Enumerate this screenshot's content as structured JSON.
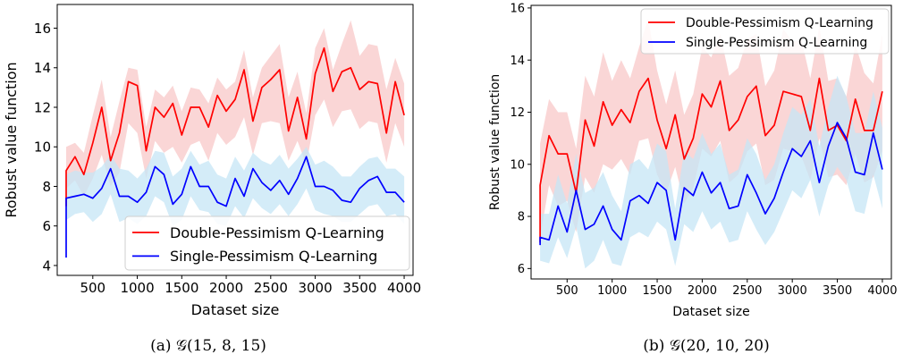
{
  "chart_data": [
    {
      "type": "line",
      "caption": "(a) 𝒢(15, 8, 15)",
      "xlabel": "Dataset size",
      "ylabel": "Robust value function",
      "xlim": [
        100,
        4100
      ],
      "ylim": [
        3.5,
        17.2
      ],
      "xticks": [
        500,
        1000,
        1500,
        2000,
        2500,
        3000,
        3500,
        4000
      ],
      "yticks": [
        4,
        6,
        8,
        10,
        12,
        14,
        16
      ],
      "legend": "lower-right",
      "x": [
        200,
        300,
        400,
        500,
        600,
        700,
        800,
        900,
        1000,
        1100,
        1200,
        1300,
        1400,
        1500,
        1600,
        1700,
        1800,
        1900,
        2000,
        2100,
        2200,
        2300,
        2400,
        2500,
        2600,
        2700,
        2800,
        2900,
        3000,
        3100,
        3200,
        3300,
        3400,
        3500,
        3600,
        3700,
        3800,
        3900,
        4000
      ],
      "series": [
        {
          "name": "Double-Pessimism Q-Learning",
          "color": "#ff0000",
          "band_color": "#f8c8c8",
          "values": [
            8.8,
            9.5,
            8.6,
            10.2,
            12.0,
            9.3,
            10.7,
            13.3,
            13.1,
            9.8,
            12.0,
            11.5,
            12.2,
            10.6,
            12.0,
            12.0,
            11.0,
            12.6,
            11.8,
            12.4,
            13.9,
            11.3,
            13.0,
            13.4,
            13.9,
            10.8,
            12.5,
            10.4,
            13.7,
            15.0,
            12.8,
            13.8,
            14.0,
            12.9,
            13.3,
            13.2,
            10.7,
            13.3,
            11.6
          ],
          "band_low": [
            7.9,
            8.3,
            7.5,
            8.4,
            9.6,
            8.0,
            8.7,
            11.2,
            10.7,
            8.4,
            10.3,
            9.7,
            10.0,
            9.2,
            10.1,
            10.3,
            9.3,
            10.7,
            10.1,
            10.5,
            11.5,
            9.6,
            11.2,
            11.3,
            11.2,
            9.3,
            10.3,
            9.1,
            11.6,
            12.4,
            11.0,
            11.8,
            11.9,
            10.9,
            11.3,
            11.2,
            9.2,
            11.2,
            10.0
          ],
          "band_high": [
            10.0,
            10.2,
            9.7,
            11.6,
            13.4,
            10.5,
            12.3,
            14.0,
            13.9,
            11.0,
            12.9,
            12.5,
            13.1,
            11.8,
            13.0,
            12.9,
            12.2,
            13.5,
            12.9,
            13.3,
            14.9,
            12.5,
            14.0,
            14.6,
            15.2,
            12.5,
            13.8,
            11.7,
            15.0,
            16.0,
            13.9,
            15.2,
            16.4,
            14.6,
            15.2,
            15.1,
            12.9,
            14.5,
            13.2
          ]
        },
        {
          "name": "Single-Pessimism Q-Learning",
          "color": "#0000ff",
          "band_color": "#c6e6f6",
          "values": [
            7.4,
            7.5,
            7.6,
            7.4,
            7.9,
            8.9,
            7.5,
            7.5,
            7.2,
            7.7,
            9.0,
            8.6,
            7.1,
            7.6,
            9.0,
            8.0,
            8.0,
            7.2,
            7.0,
            8.4,
            7.5,
            8.9,
            8.2,
            7.8,
            8.3,
            7.6,
            8.4,
            9.5,
            8.0,
            8.0,
            7.8,
            7.3,
            7.2,
            7.9,
            8.3,
            8.5,
            7.7,
            7.7,
            7.2
          ],
          "band_low": [
            6.3,
            6.6,
            6.7,
            6.2,
            6.6,
            7.6,
            6.2,
            6.4,
            6.1,
            6.5,
            7.5,
            7.2,
            6.0,
            6.3,
            7.5,
            6.8,
            6.7,
            6.1,
            6.0,
            7.0,
            6.4,
            7.4,
            6.9,
            6.6,
            7.1,
            6.5,
            7.1,
            7.9,
            6.8,
            6.6,
            6.5,
            6.2,
            6.2,
            6.6,
            7.0,
            7.1,
            6.5,
            6.6,
            6.1
          ],
          "band_high": [
            8.6,
            8.8,
            8.7,
            8.7,
            9.0,
            9.6,
            8.9,
            8.8,
            8.4,
            8.9,
            9.8,
            9.7,
            8.5,
            8.9,
            9.8,
            9.1,
            9.3,
            8.6,
            8.4,
            9.5,
            8.8,
            9.7,
            9.3,
            9.1,
            9.6,
            8.9,
            9.4,
            10.0,
            9.1,
            9.3,
            9.0,
            8.5,
            8.5,
            9.0,
            9.4,
            9.5,
            8.9,
            8.9,
            8.5
          ]
        }
      ],
      "start_points": [
        {
          "series": "Double-Pessimism Q-Learning",
          "x": 200,
          "y": 7.0
        },
        {
          "series": "Single-Pessimism Q-Learning",
          "x": 200,
          "y": 4.4
        }
      ]
    },
    {
      "type": "line",
      "caption": "(b) 𝒢(20, 10, 20)",
      "xlabel": "Dataset size",
      "ylabel": "Robust value function",
      "xlim": [
        100,
        4100
      ],
      "ylim": [
        5.6,
        16.1
      ],
      "xticks": [
        500,
        1000,
        1500,
        2000,
        2500,
        3000,
        3500,
        4000
      ],
      "yticks": [
        6,
        8,
        10,
        12,
        14,
        16
      ],
      "legend": "top-right",
      "x": [
        200,
        300,
        400,
        500,
        600,
        700,
        800,
        900,
        1000,
        1100,
        1200,
        1300,
        1400,
        1500,
        1600,
        1700,
        1800,
        1900,
        2000,
        2100,
        2200,
        2300,
        2400,
        2500,
        2600,
        2700,
        2800,
        2900,
        3000,
        3100,
        3200,
        3300,
        3400,
        3500,
        3600,
        3700,
        3800,
        3900,
        4000
      ],
      "series": [
        {
          "name": "Double-Pessimism Q-Learning",
          "color": "#ff0000",
          "band_color": "#f8c8c8",
          "values": [
            9.2,
            11.1,
            10.4,
            10.4,
            8.9,
            11.7,
            10.7,
            12.4,
            11.5,
            12.1,
            11.6,
            12.8,
            13.3,
            11.7,
            10.6,
            11.9,
            10.2,
            11.0,
            12.7,
            12.2,
            13.2,
            11.3,
            11.7,
            12.6,
            13.0,
            11.1,
            11.5,
            12.8,
            12.7,
            12.6,
            11.3,
            13.3,
            11.3,
            11.5,
            10.9,
            12.5,
            11.3,
            11.3,
            12.8
          ],
          "band_low": [
            7.2,
            9.2,
            8.4,
            8.6,
            7.4,
            9.5,
            8.9,
            10.0,
            9.8,
            10.2,
            9.6,
            10.9,
            11.0,
            9.6,
            8.9,
            9.9,
            8.5,
            9.1,
            10.6,
            10.3,
            10.9,
            9.3,
            9.6,
            10.5,
            10.8,
            9.2,
            9.4,
            10.6,
            10.5,
            10.3,
            9.4,
            11.0,
            9.5,
            9.6,
            9.2,
            10.4,
            9.3,
            9.5,
            10.5
          ],
          "band_high": [
            10.8,
            12.5,
            12.0,
            12.0,
            10.6,
            13.4,
            12.6,
            14.3,
            13.2,
            14.0,
            13.3,
            14.5,
            15.6,
            13.6,
            12.3,
            13.6,
            11.9,
            12.7,
            14.5,
            14.1,
            15.0,
            13.4,
            13.7,
            14.8,
            15.0,
            13.0,
            13.6,
            15.2,
            14.7,
            14.8,
            13.3,
            15.3,
            13.2,
            13.3,
            12.6,
            14.6,
            13.5,
            13.1,
            15.0
          ]
        },
        {
          "name": "Single-Pessimism Q-Learning",
          "color": "#0000ff",
          "band_color": "#c6e6f6",
          "values": [
            7.2,
            7.1,
            8.4,
            7.4,
            9.0,
            7.5,
            7.7,
            8.4,
            7.5,
            7.1,
            8.6,
            8.8,
            8.5,
            9.3,
            9.0,
            7.1,
            9.1,
            8.8,
            9.7,
            8.9,
            9.3,
            8.3,
            8.4,
            9.6,
            8.9,
            8.1,
            8.7,
            9.7,
            10.6,
            10.3,
            10.9,
            9.3,
            10.7,
            11.6,
            11.0,
            9.7,
            9.6,
            11.2,
            9.8
          ],
          "band_low": [
            6.3,
            6.2,
            7.2,
            6.4,
            7.6,
            6.0,
            6.3,
            7.1,
            6.2,
            6.1,
            7.2,
            7.4,
            7.2,
            7.8,
            7.5,
            6.1,
            7.7,
            7.4,
            8.2,
            7.5,
            7.8,
            7.0,
            7.1,
            8.2,
            7.5,
            6.9,
            7.4,
            8.2,
            9.0,
            8.7,
            9.4,
            8.0,
            9.2,
            9.9,
            9.4,
            8.2,
            8.1,
            9.6,
            8.3
          ],
          "band_high": [
            8.1,
            8.1,
            9.6,
            8.5,
            10.4,
            8.9,
            9.1,
            9.7,
            8.8,
            8.2,
            10.0,
            10.2,
            9.8,
            10.8,
            10.5,
            8.3,
            10.5,
            10.2,
            11.2,
            10.4,
            10.8,
            9.6,
            9.8,
            11.0,
            10.4,
            9.4,
            10.0,
            11.2,
            12.2,
            11.9,
            12.5,
            10.7,
            12.2,
            13.4,
            12.6,
            11.2,
            11.2,
            12.8,
            11.4
          ]
        }
      ],
      "start_points": [
        {
          "series": "Double-Pessimism Q-Learning",
          "x": 200,
          "y": 7.0
        },
        {
          "series": "Single-Pessimism Q-Learning",
          "x": 200,
          "y": 6.9
        }
      ]
    }
  ]
}
